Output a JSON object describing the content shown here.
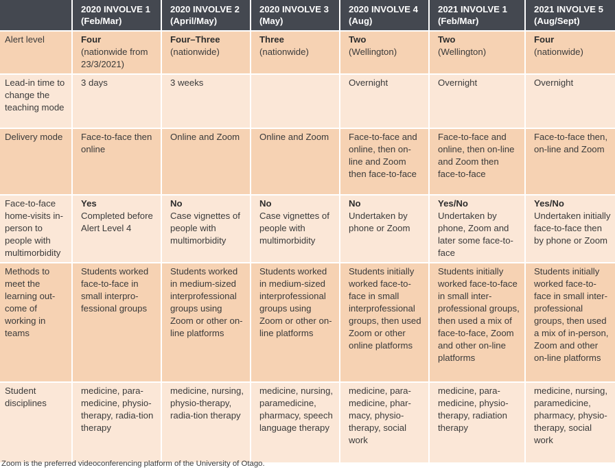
{
  "columns": [
    {
      "label": "2020 INVOLVE 1 (Feb/Mar)"
    },
    {
      "label": "2020 INVOLVE 2 (April/May)"
    },
    {
      "label": "2020 INVOLVE 3 (May)"
    },
    {
      "label": "2020 INVOLVE 4 (Aug)"
    },
    {
      "label": "2021 INVOLVE 1 (Feb/Mar)"
    },
    {
      "label": "2021 INVOLVE 5 (Aug/Sept)"
    }
  ],
  "rows": [
    {
      "label": "Alert level",
      "cells": [
        {
          "strong": "Four",
          "text": "(nationwide from 23/3/2021)"
        },
        {
          "strong": "Four–Three",
          "text": "(nationwide)"
        },
        {
          "strong": "Three",
          "text": "(nationwide)"
        },
        {
          "strong": "Two",
          "text": "(Wellington)"
        },
        {
          "strong": "Two",
          "text": "(Wellington)"
        },
        {
          "strong": "Four",
          "text": "(nationwide)"
        }
      ]
    },
    {
      "label": "Lead-in time to change the teaching mode",
      "cells": [
        {
          "strong": "",
          "text": "3 days"
        },
        {
          "strong": "",
          "text": "3 weeks"
        },
        {
          "strong": "",
          "text": ""
        },
        {
          "strong": "",
          "text": "Overnight"
        },
        {
          "strong": "",
          "text": "Overnight"
        },
        {
          "strong": "",
          "text": "Overnight"
        }
      ]
    },
    {
      "label": "Delivery mode",
      "cells": [
        {
          "strong": "",
          "text": "Face-to-face then online"
        },
        {
          "strong": "",
          "text": "Online and Zoom"
        },
        {
          "strong": "",
          "text": "Online and Zoom"
        },
        {
          "strong": "",
          "text": "Face-to-face and online, then on-line and Zoom then face-to-face"
        },
        {
          "strong": "",
          "text": "Face-to-face and online, then on-line and Zoom then face-to-face"
        },
        {
          "strong": "",
          "text": "Face-to-face then, on-line and Zoom"
        }
      ]
    },
    {
      "label": "Face-to-face home-visits in-person to people with multimorbidity",
      "cells": [
        {
          "strong": "Yes",
          "text": "Completed before Alert Level 4"
        },
        {
          "strong": "No",
          "text": "Case vignettes of people with multimorbidity"
        },
        {
          "strong": "No",
          "text": "Case vignettes of people with multimorbidity"
        },
        {
          "strong": "No",
          "text": "Undertaken by phone or Zoom"
        },
        {
          "strong": "Yes/No",
          "text": "Undertaken by phone, Zoom and later some face-to-face"
        },
        {
          "strong": "Yes/No",
          "text": "Undertaken initially face-to-face then by phone or Zoom"
        }
      ]
    },
    {
      "label": "Methods to meet the learning out-come of working in teams",
      "cells": [
        {
          "strong": "",
          "text": "Students worked face-to-face in small interpro-fessional groups"
        },
        {
          "strong": "",
          "text": "Students worked in medium-sized interprofessional groups using Zoom or other on-line platforms"
        },
        {
          "strong": "",
          "text": "Students worked in medium-sized interprofessional groups using Zoom or other on-line platforms"
        },
        {
          "strong": "",
          "text": "Students initially worked face-to-face in small interprofessional groups, then used Zoom or other online platforms"
        },
        {
          "strong": "",
          "text": "Students initially worked face-to-face in small inter-professional groups, then used a mix of face-to-face, Zoom and other on-line platforms"
        },
        {
          "strong": "",
          "text": "Students initially worked face-to-face in small inter-professional groups, then used a mix of in-person, Zoom and other on-line platforms"
        }
      ]
    },
    {
      "label": "Student disciplines",
      "cells": [
        {
          "strong": "",
          "text": "medicine, para-medicine, physio-therapy, radia-tion therapy"
        },
        {
          "strong": "",
          "text": "medicine, nursing, physio-therapy, radia-tion therapy"
        },
        {
          "strong": "",
          "text": "medicine, nursing, paramedicine, pharmacy, speech language therapy"
        },
        {
          "strong": "",
          "text": "medicine, para-medicine, phar-macy, physio-therapy, social work"
        },
        {
          "strong": "",
          "text": "medicine, para-medicine, physio-therapy, radiation therapy"
        },
        {
          "strong": "",
          "text": "medicine, nursing, paramedicine, pharmacy, physio-therapy, social work"
        }
      ]
    }
  ],
  "footnote": "Zoom is the preferred videoconferencing platform of the University of Otago."
}
